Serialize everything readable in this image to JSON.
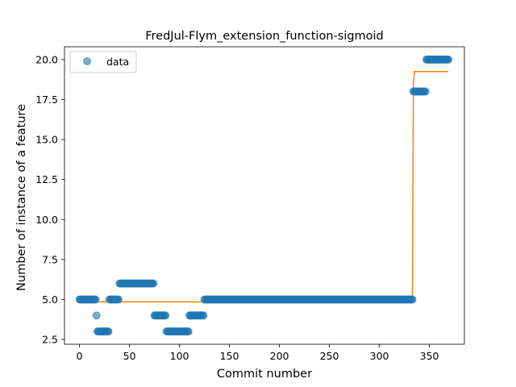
{
  "chart_data": {
    "type": "scatter",
    "title": "FredJul-Flym_extension_function-sigmoid",
    "xlabel": "Commit number",
    "ylabel": "Number of instance of a feature",
    "xlim": [
      -15,
      385
    ],
    "ylim": [
      2.2,
      20.8
    ],
    "xticks": [
      0,
      50,
      100,
      150,
      200,
      250,
      300,
      350
    ],
    "yticks": [
      2.5,
      5.0,
      7.5,
      10.0,
      12.5,
      15.0,
      17.5,
      20.0
    ],
    "xtick_labels": [
      "0",
      "50",
      "100",
      "150",
      "200",
      "250",
      "300",
      "350"
    ],
    "ytick_labels": [
      "2.5",
      "5.0",
      "7.5",
      "10.0",
      "12.5",
      "15.0",
      "17.5",
      "20.0"
    ],
    "grid": false,
    "legend": {
      "placement": "top-left",
      "entries": [
        "data"
      ]
    },
    "colors": {
      "data": "#1f77b4",
      "fit": "#ff7f0e"
    },
    "data_segments": [
      {
        "x_start": 0,
        "x_end": 16,
        "y": 5
      },
      {
        "x_start": 17,
        "x_end": 17,
        "y": 4
      },
      {
        "x_start": 18,
        "x_end": 29,
        "y": 3
      },
      {
        "x_start": 30,
        "x_end": 39,
        "y": 5
      },
      {
        "x_start": 40,
        "x_end": 74,
        "y": 6
      },
      {
        "x_start": 75,
        "x_end": 86,
        "y": 4
      },
      {
        "x_start": 87,
        "x_end": 109,
        "y": 3
      },
      {
        "x_start": 110,
        "x_end": 124,
        "y": 4
      },
      {
        "x_start": 125,
        "x_end": 333,
        "y": 5
      },
      {
        "x_start": 334,
        "x_end": 346,
        "y": 18
      },
      {
        "x_start": 347,
        "x_end": 369,
        "y": 20
      }
    ],
    "fit_line": [
      {
        "x": 0,
        "y": 4.85
      },
      {
        "x": 331,
        "y": 4.85
      },
      {
        "x": 333,
        "y": 5.2
      },
      {
        "x": 334,
        "y": 18.5
      },
      {
        "x": 335,
        "y": 19.25
      },
      {
        "x": 369,
        "y": 19.25
      }
    ]
  }
}
